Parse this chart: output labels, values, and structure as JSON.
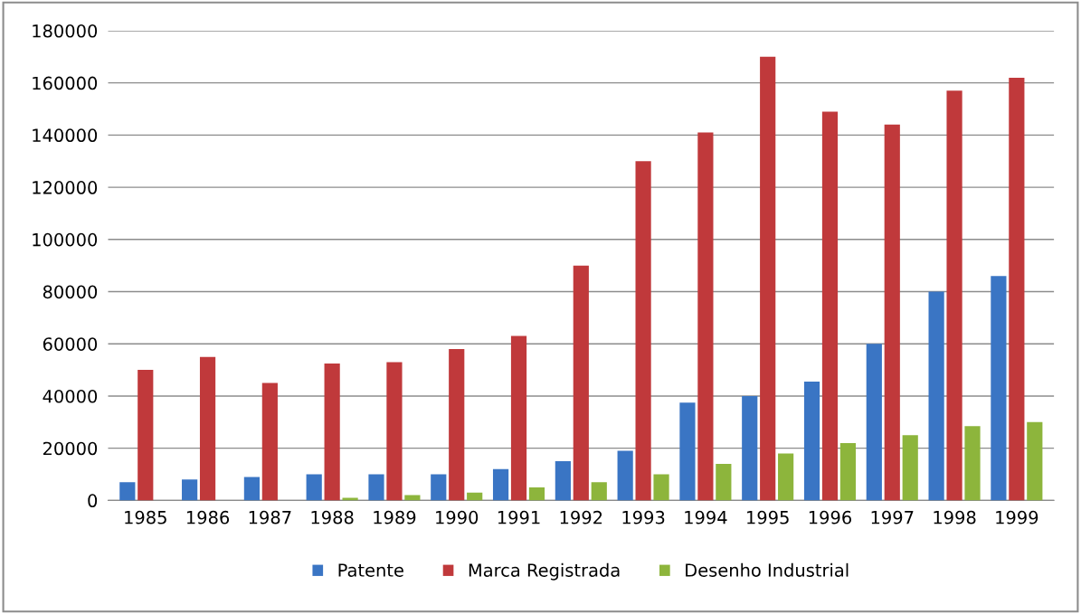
{
  "chart_data": {
    "type": "bar",
    "categories": [
      "1985",
      "1986",
      "1987",
      "1988",
      "1989",
      "1990",
      "1991",
      "1992",
      "1993",
      "1994",
      "1995",
      "1996",
      "1997",
      "1998",
      "1999"
    ],
    "series": [
      {
        "name": "Patente",
        "color": "#3a75c4",
        "values": [
          7000,
          8000,
          9000,
          10000,
          10000,
          10000,
          12000,
          15000,
          19000,
          37500,
          40000,
          45500,
          60000,
          80000,
          86000
        ]
      },
      {
        "name": "Marca Registrada",
        "color": "#c0393b",
        "values": [
          50000,
          55000,
          45000,
          52500,
          53000,
          58000,
          63000,
          90000,
          130000,
          141000,
          170000,
          149000,
          144000,
          157000,
          162000
        ]
      },
      {
        "name": "Desenho Industrial",
        "color": "#8db53c",
        "values": [
          null,
          null,
          null,
          1000,
          2000,
          3000,
          5000,
          7000,
          10000,
          14000,
          18000,
          22000,
          25000,
          28500,
          30000
        ]
      }
    ],
    "ylim": [
      0,
      180000
    ],
    "yticks": [
      0,
      20000,
      40000,
      60000,
      80000,
      100000,
      120000,
      140000,
      160000,
      180000
    ],
    "grid": "y",
    "legend": "bottom"
  }
}
